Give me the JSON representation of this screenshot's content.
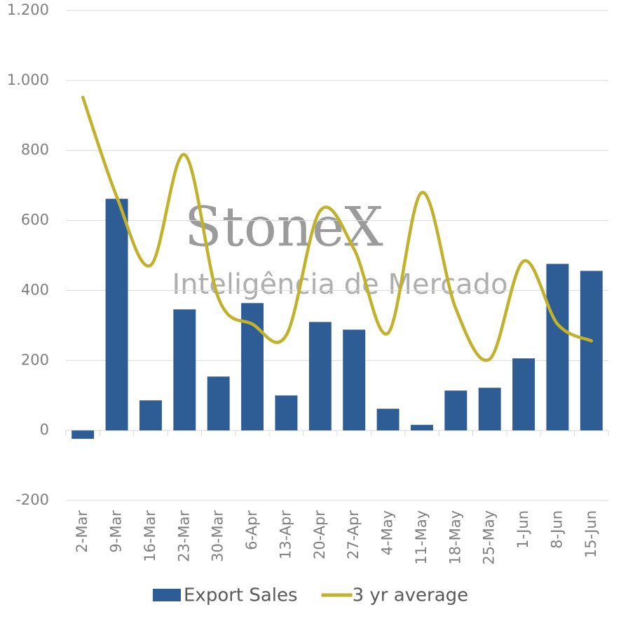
{
  "chart_data": {
    "type": "bar_line",
    "categories": [
      "2-Mar",
      "9-Mar",
      "16-Mar",
      "23-Mar",
      "30-Mar",
      "6-Apr",
      "13-Apr",
      "20-Apr",
      "27-Apr",
      "4-May",
      "11-May",
      "18-May",
      "25-May",
      "1-Jun",
      "8-Jun",
      "15-Jun"
    ],
    "series": [
      {
        "name": "Export Sales",
        "type": "bar",
        "color": "#2e5c94",
        "values": [
          -24,
          662,
          86,
          346,
          154,
          364,
          100,
          310,
          288,
          62,
          16,
          114,
          122,
          206,
          476,
          456
        ]
      },
      {
        "name": "3 yr average",
        "type": "line",
        "color": "#c1b22e",
        "smooth": true,
        "values": [
          952,
          668,
          472,
          788,
          378,
          304,
          272,
          628,
          518,
          278,
          680,
          348,
          204,
          484,
          304,
          256
        ]
      }
    ],
    "ylim": [
      -200,
      1200
    ],
    "yticks": [
      -200,
      0,
      200,
      400,
      600,
      800,
      {
        "value": 1000,
        "label": "1.000"
      },
      {
        "value": 1200,
        "label": "1.200"
      }
    ],
    "grid": true,
    "legend": "bottom",
    "watermark": {
      "brand": "StoneX",
      "tagline": "Inteligência de Mercado"
    }
  }
}
